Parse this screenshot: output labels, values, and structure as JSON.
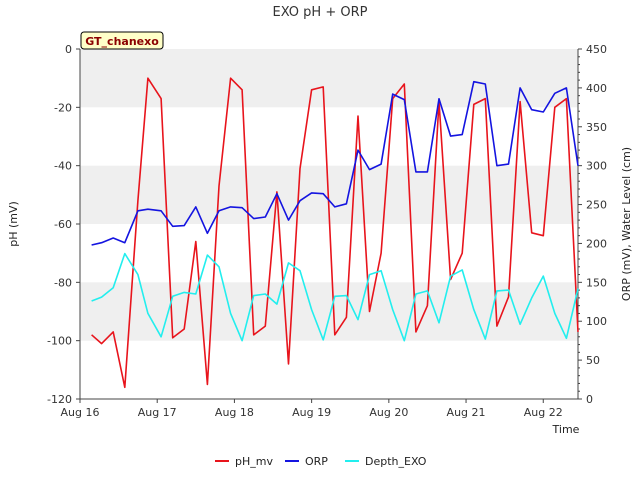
{
  "chart_data": {
    "type": "line",
    "title": "EXO pH + ORP",
    "xlabel": "Time",
    "ylabel_left": "pH (mV)",
    "ylabel_right": "ORP (mV), Water Level (cm)",
    "badge": "GT_chanexo",
    "ylim_left": [
      -120,
      0
    ],
    "ylim_right": [
      0,
      450
    ],
    "xlim_days": [
      0,
      6.45
    ],
    "x_tick_labels": [
      "Aug 16",
      "Aug 17",
      "Aug 18",
      "Aug 19",
      "Aug 20",
      "Aug 21",
      "Aug 22"
    ],
    "left_tick_labels": [
      "0",
      "-20",
      "-40",
      "-60",
      "-80",
      "-100",
      "-120"
    ],
    "right_tick_labels": [
      "450",
      "400",
      "350",
      "300",
      "250",
      "200",
      "150",
      "100",
      "50",
      "0"
    ],
    "grid": "horizontal bands",
    "legend_position": "bottom-center",
    "colors": {
      "pH_mv": "#e8141c",
      "ORP": "#1414e0",
      "Depth_EXO": "#22eeee",
      "band": "#efefef",
      "badge_bg": "#ffffc8"
    },
    "series": [
      {
        "name": "pH_mv",
        "axis": "left",
        "x": [
          0.15,
          0.28,
          0.43,
          0.58,
          0.75,
          0.88,
          1.05,
          1.2,
          1.35,
          1.5,
          1.65,
          1.8,
          1.95,
          2.1,
          2.25,
          2.4,
          2.55,
          2.7,
          2.85,
          3.0,
          3.15,
          3.3,
          3.45,
          3.6,
          3.75,
          3.9,
          4.05,
          4.2,
          4.35,
          4.5,
          4.65,
          4.8,
          4.95,
          5.1,
          5.25,
          5.4,
          5.55,
          5.7,
          5.85,
          6.0,
          6.15,
          6.3,
          6.45
        ],
        "y": [
          -98,
          -101,
          -97,
          -116,
          -52,
          -10,
          -17,
          -99,
          -96,
          -66,
          -115,
          -47,
          -10,
          -14,
          -98,
          -95,
          -49,
          -108,
          -41,
          -14,
          -13,
          -98,
          -92,
          -23,
          -90,
          -70,
          -17,
          -12,
          -97,
          -88,
          -18,
          -79,
          -70,
          -19,
          -17,
          -95,
          -85,
          -18,
          -63,
          -64,
          -20,
          -17,
          -97
        ]
      },
      {
        "name": "ORP",
        "axis": "right",
        "x": [
          0.15,
          0.28,
          0.43,
          0.58,
          0.75,
          0.88,
          1.05,
          1.2,
          1.35,
          1.5,
          1.65,
          1.8,
          1.95,
          2.1,
          2.25,
          2.4,
          2.55,
          2.7,
          2.85,
          3.0,
          3.15,
          3.3,
          3.45,
          3.6,
          3.75,
          3.9,
          4.05,
          4.2,
          4.35,
          4.5,
          4.65,
          4.8,
          4.95,
          5.1,
          5.25,
          5.4,
          5.55,
          5.7,
          5.85,
          6.0,
          6.15,
          6.3,
          6.45
        ],
        "y": [
          198,
          201,
          207,
          201,
          242,
          244,
          242,
          222,
          223,
          247,
          213,
          242,
          247,
          246,
          232,
          234,
          264,
          230,
          255,
          265,
          264,
          247,
          251,
          320,
          295,
          302,
          392,
          385,
          292,
          292,
          386,
          338,
          340,
          408,
          405,
          300,
          302,
          400,
          372,
          369,
          393,
          400,
          300
        ]
      },
      {
        "name": "Depth_EXO",
        "axis": "right",
        "x": [
          0.15,
          0.28,
          0.43,
          0.58,
          0.75,
          0.88,
          1.05,
          1.2,
          1.35,
          1.5,
          1.65,
          1.8,
          1.95,
          2.1,
          2.25,
          2.4,
          2.55,
          2.7,
          2.85,
          3.0,
          3.15,
          3.3,
          3.45,
          3.6,
          3.75,
          3.9,
          4.05,
          4.2,
          4.35,
          4.5,
          4.65,
          4.8,
          4.95,
          5.1,
          5.25,
          5.4,
          5.55,
          5.7,
          5.85,
          6.0,
          6.15,
          6.3,
          6.45
        ],
        "y": [
          126,
          131,
          143,
          187,
          160,
          110,
          80,
          132,
          137,
          135,
          185,
          170,
          110,
          75,
          133,
          135,
          122,
          175,
          165,
          115,
          76,
          132,
          133,
          102,
          160,
          165,
          115,
          75,
          135,
          139,
          98,
          158,
          166,
          115,
          77,
          139,
          140,
          96,
          130,
          158,
          110,
          78,
          142
        ]
      }
    ]
  }
}
